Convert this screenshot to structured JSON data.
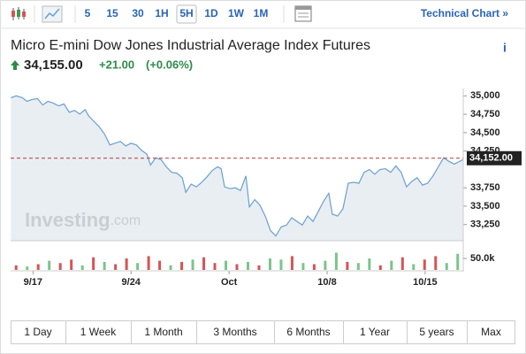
{
  "toolbar": {
    "intervals": [
      "5",
      "15",
      "30",
      "1H",
      "5H",
      "1D",
      "1W",
      "1M"
    ],
    "selected": 4,
    "link": "Technical Chart »"
  },
  "header": {
    "title": "Micro E-mini Dow Jones Industrial Average Index Futures",
    "price": "34,155.00",
    "change": "+21.00",
    "change_percent": "(+0.06%)",
    "info": "i"
  },
  "chart_data": [
    {
      "type": "line",
      "watermark": "Investing",
      "watermark_suffix": ".com",
      "color": "#6a9fd0",
      "fill": "#e9eef3",
      "x": [
        -1.58,
        -1.2,
        -0.76,
        -0.44,
        -0.06,
        0.32,
        0.69,
        1.07,
        1.45,
        1.83,
        2.21,
        2.59,
        2.96,
        3.34,
        3.72,
        3.97,
        4.35,
        4.73,
        5.11,
        5.49,
        5.86,
        6.24,
        6.62,
        7.0,
        7.38,
        7.76,
        8.13,
        8.39,
        8.76,
        9.14,
        9.52,
        9.9,
        10.28,
        10.66,
        10.91,
        11.29,
        11.66,
        12.04,
        12.42,
        12.8,
        13.18,
        13.43,
        13.68,
        14.06,
        14.44,
        14.82,
        15.2,
        15.45,
        15.83,
        16.2,
        16.58,
        16.96,
        17.34,
        17.72,
        18.1,
        18.47,
        18.85,
        19.23,
        19.61,
        19.99,
        20.37,
        20.74,
        21.12,
        21.37,
        21.75,
        22.13,
        22.51,
        22.89,
        23.27,
        23.64,
        24.02,
        24.4,
        24.78,
        25.16,
        25.54,
        25.91,
        26.29,
        26.67,
        27.05,
        27.43,
        27.81,
        28.18,
        28.56,
        28.94,
        29.32,
        29.7,
        30.08,
        30.45,
        30.71
      ],
      "values": [
        34975,
        35000,
        34975,
        34926,
        34950,
        34963,
        34876,
        34926,
        34901,
        34864,
        34889,
        34777,
        34802,
        34752,
        34814,
        34728,
        34653,
        34579,
        34480,
        34332,
        34356,
        34381,
        34319,
        34356,
        34332,
        34257,
        34208,
        34059,
        34158,
        34134,
        34035,
        33960,
        33948,
        33886,
        33688,
        33800,
        33762,
        33824,
        33899,
        33985,
        34035,
        34010,
        33762,
        33738,
        33750,
        33713,
        33911,
        33490,
        33589,
        33515,
        33366,
        33168,
        33094,
        33218,
        33243,
        33342,
        33292,
        33243,
        33366,
        33292,
        33428,
        33564,
        33676,
        33391,
        33366,
        33465,
        33812,
        33824,
        33812,
        33960,
        33998,
        33935,
        33998,
        34010,
        33960,
        34047,
        33960,
        33762,
        33837,
        33886,
        33787,
        33812,
        33911,
        34035,
        34158,
        34109,
        34072,
        34109,
        34134
      ],
      "xlim": [
        -1.6,
        30.72
      ],
      "ylim": [
        33030,
        35100
      ],
      "xticks": [
        {
          "value": 0,
          "label": "9/17"
        },
        {
          "value": 7,
          "label": "9/24"
        },
        {
          "value": 14,
          "label": "Oct"
        },
        {
          "value": 21,
          "label": "10/8"
        },
        {
          "value": 28,
          "label": "10/15"
        }
      ],
      "yticks": [
        {
          "value": 35000,
          "label": "35,000"
        },
        {
          "value": 34750,
          "label": "34,750"
        },
        {
          "value": 34500,
          "label": "34,500"
        },
        {
          "value": 34250,
          "label": "34,250"
        },
        {
          "value": 33750,
          "label": "33,750"
        },
        {
          "value": 33500,
          "label": "33,500"
        },
        {
          "value": 33250,
          "label": "33,250"
        }
      ],
      "reference": {
        "value": 34152,
        "label": "34,152.00",
        "color": "#b03a3a"
      }
    },
    {
      "type": "bar",
      "categories": [
        null,
        null,
        null,
        null,
        null,
        null,
        null,
        null,
        null,
        null,
        null,
        null,
        null,
        null,
        null,
        null,
        null,
        null,
        null,
        null,
        null,
        null,
        null,
        null,
        null,
        null,
        null,
        null,
        null,
        null,
        null,
        null,
        null,
        null,
        null,
        null,
        null,
        null,
        null,
        null,
        null
      ],
      "values": [
        20000,
        15000,
        25000,
        40000,
        30000,
        45000,
        20000,
        55000,
        35000,
        25000,
        50000,
        30000,
        60000,
        40000,
        20000,
        35000,
        45000,
        55000,
        30000,
        40000,
        25000,
        35000,
        20000,
        50000,
        45000,
        60000,
        30000,
        25000,
        40000,
        75000,
        35000,
        30000,
        50000,
        20000,
        40000,
        55000,
        25000,
        45000,
        60000,
        30000,
        70000
      ],
      "colors": [
        "#d65454",
        "#7cc48a",
        "#d65454",
        "#7cc48a",
        "#d65454",
        "#d65454",
        "#7cc48a",
        "#d65454",
        "#7cc48a",
        "#d65454",
        "#d65454",
        "#7cc48a",
        "#d65454",
        "#d65454",
        "#7cc48a",
        "#d65454",
        "#7cc48a",
        "#d65454",
        "#d65454",
        "#7cc48a",
        "#d65454",
        "#7cc48a",
        "#d65454",
        "#7cc48a",
        "#7cc48a",
        "#d65454",
        "#7cc48a",
        "#d65454",
        "#7cc48a",
        "#7cc48a",
        "#d65454",
        "#7cc48a",
        "#7cc48a",
        "#d65454",
        "#7cc48a",
        "#d65454",
        "#7cc48a",
        "#d65454",
        "#d65454",
        "#7cc48a",
        "#7cc48a"
      ],
      "ylim": [
        0,
        104000
      ],
      "yticks": [
        {
          "value": 50000,
          "label": "50.0k"
        }
      ]
    }
  ],
  "range_buttons": [
    "1 Day",
    "1 Week",
    "1 Month",
    "3 Months",
    "6 Months",
    "1 Year",
    "5 years",
    "Max"
  ]
}
